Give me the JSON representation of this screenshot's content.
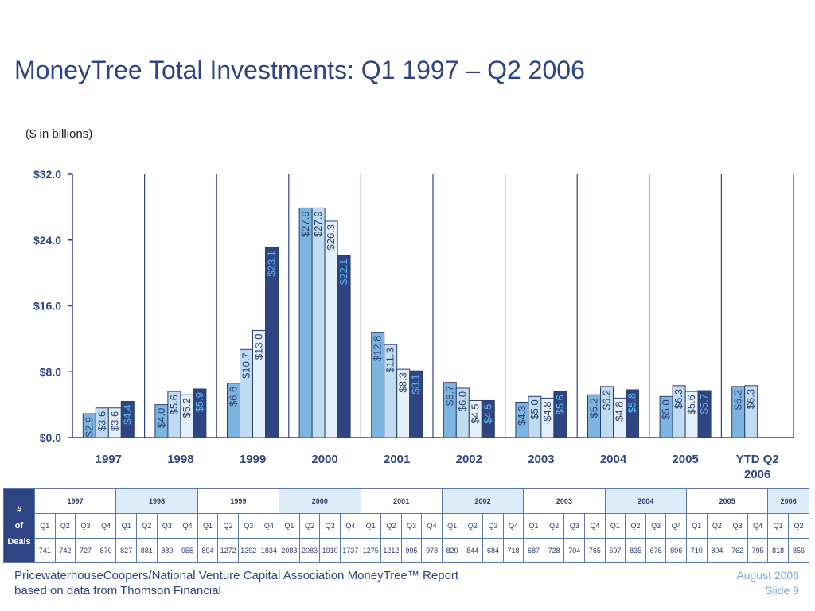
{
  "title": "MoneyTree Total Investments: Q1 1997 – Q2 2006",
  "unit_note": "($ in billions)",
  "colors": {
    "q1": "#7cb5e0",
    "q2": "#bfdcf2",
    "q3": "#e4f0fa",
    "q4": "#2f4583",
    "label_dark": "#2e3e6e",
    "label_q4": "#5bb8e8"
  },
  "chart_data": {
    "type": "bar",
    "title": "MoneyTree Total Investments: Q1 1997 – Q2 2006",
    "ylabel": "($ in billions)",
    "ylim": [
      0,
      32
    ],
    "yticks": [
      "$0.0",
      "$8.0",
      "$16.0",
      "$24.0",
      "$32.0"
    ],
    "ytick_values": [
      0,
      8,
      16,
      24,
      32
    ],
    "grid": "vertical separators between years",
    "categories": [
      "1997",
      "1998",
      "1999",
      "2000",
      "2001",
      "2002",
      "2003",
      "2004",
      "2005",
      "YTD Q2 2006"
    ],
    "category_lines": [
      [
        "1997"
      ],
      [
        "1998"
      ],
      [
        "1999"
      ],
      [
        "2000"
      ],
      [
        "2001"
      ],
      [
        "2002"
      ],
      [
        "2003"
      ],
      [
        "2004"
      ],
      [
        "2005"
      ],
      [
        "YTD Q2",
        "2006"
      ]
    ],
    "series": [
      {
        "name": "Q1",
        "values": [
          2.9,
          4.0,
          6.6,
          27.9,
          12.8,
          6.7,
          4.3,
          5.2,
          5.0,
          6.2
        ],
        "labels": [
          "$2.9",
          "$4.0",
          "$6.6",
          "$27.9",
          "$12.8",
          "$6.7",
          "$4.3",
          "$5.2",
          "$5.0",
          "$6.2"
        ]
      },
      {
        "name": "Q2",
        "values": [
          3.6,
          5.6,
          10.7,
          27.9,
          11.3,
          6.0,
          5.0,
          6.2,
          6.3,
          6.3
        ],
        "labels": [
          "$3.6",
          "$5.6",
          "$10.7",
          "$27.9",
          "$11.3",
          "$6.0",
          "$5.0",
          "$6.2",
          "$6.3",
          "$6.3"
        ]
      },
      {
        "name": "Q3",
        "values": [
          3.6,
          5.2,
          13.0,
          26.3,
          8.3,
          4.5,
          4.8,
          4.8,
          5.6,
          null
        ],
        "labels": [
          "$3.6",
          "$5.2",
          "$13.0",
          "$26.3",
          "$8.3",
          "$4.5",
          "$4.8",
          "$4.8",
          "$5.6",
          null
        ]
      },
      {
        "name": "Q4",
        "values": [
          4.4,
          5.9,
          23.1,
          22.1,
          8.1,
          4.5,
          5.6,
          5.8,
          5.7,
          null
        ],
        "labels": [
          "$4.4",
          "$5.9",
          "$23.1",
          "$22.1",
          "$8.1",
          "$4.5",
          "$5.6",
          "$5.8",
          "$5.7",
          null
        ]
      }
    ]
  },
  "deals_table": {
    "header": [
      "#",
      "of",
      "Deals"
    ],
    "years": [
      {
        "label": "1997",
        "shade": false,
        "quarters": [
          "Q1",
          "Q2",
          "Q3",
          "Q4"
        ],
        "counts": [
          "741",
          "742",
          "727",
          "870"
        ]
      },
      {
        "label": "1998",
        "shade": true,
        "quarters": [
          "Q1",
          "Q2",
          "Q3",
          "Q4"
        ],
        "counts": [
          "827",
          "881",
          "889",
          "955"
        ]
      },
      {
        "label": "1999",
        "shade": false,
        "quarters": [
          "Q1",
          "Q2",
          "Q3",
          "Q4"
        ],
        "counts": [
          "894",
          "1272",
          "1392",
          "1834"
        ]
      },
      {
        "label": "2000",
        "shade": true,
        "quarters": [
          "Q1",
          "Q2",
          "Q3",
          "Q4"
        ],
        "counts": [
          "2083",
          "2083",
          "1910",
          "1737"
        ]
      },
      {
        "label": "2001",
        "shade": false,
        "quarters": [
          "Q1",
          "Q2",
          "Q3",
          "Q4"
        ],
        "counts": [
          "1275",
          "1212",
          "995",
          "978"
        ]
      },
      {
        "label": "2002",
        "shade": true,
        "quarters": [
          "Q1",
          "Q2",
          "Q3",
          "Q4"
        ],
        "counts": [
          "820",
          "844",
          "684",
          "718"
        ]
      },
      {
        "label": "2003",
        "shade": false,
        "quarters": [
          "Q1",
          "Q2",
          "Q3",
          "Q4"
        ],
        "counts": [
          "687",
          "728",
          "704",
          "765"
        ]
      },
      {
        "label": "2004",
        "shade": true,
        "quarters": [
          "Q1",
          "Q2",
          "Q3",
          "Q4"
        ],
        "counts": [
          "697",
          "835",
          "675",
          "806"
        ]
      },
      {
        "label": "2005",
        "shade": false,
        "quarters": [
          "Q1",
          "Q2",
          "Q3",
          "Q4"
        ],
        "counts": [
          "710",
          "804",
          "762",
          "795"
        ]
      },
      {
        "label": "2006",
        "shade": true,
        "quarters": [
          "Q1",
          "Q2"
        ],
        "counts": [
          "818",
          "856"
        ]
      }
    ]
  },
  "footer": {
    "line1": "PricewaterhouseCoopers/National Venture Capital Association MoneyTree™ Report",
    "line2": "based on data from Thomson Financial",
    "date": "August 2006",
    "slide": "Slide 9"
  }
}
